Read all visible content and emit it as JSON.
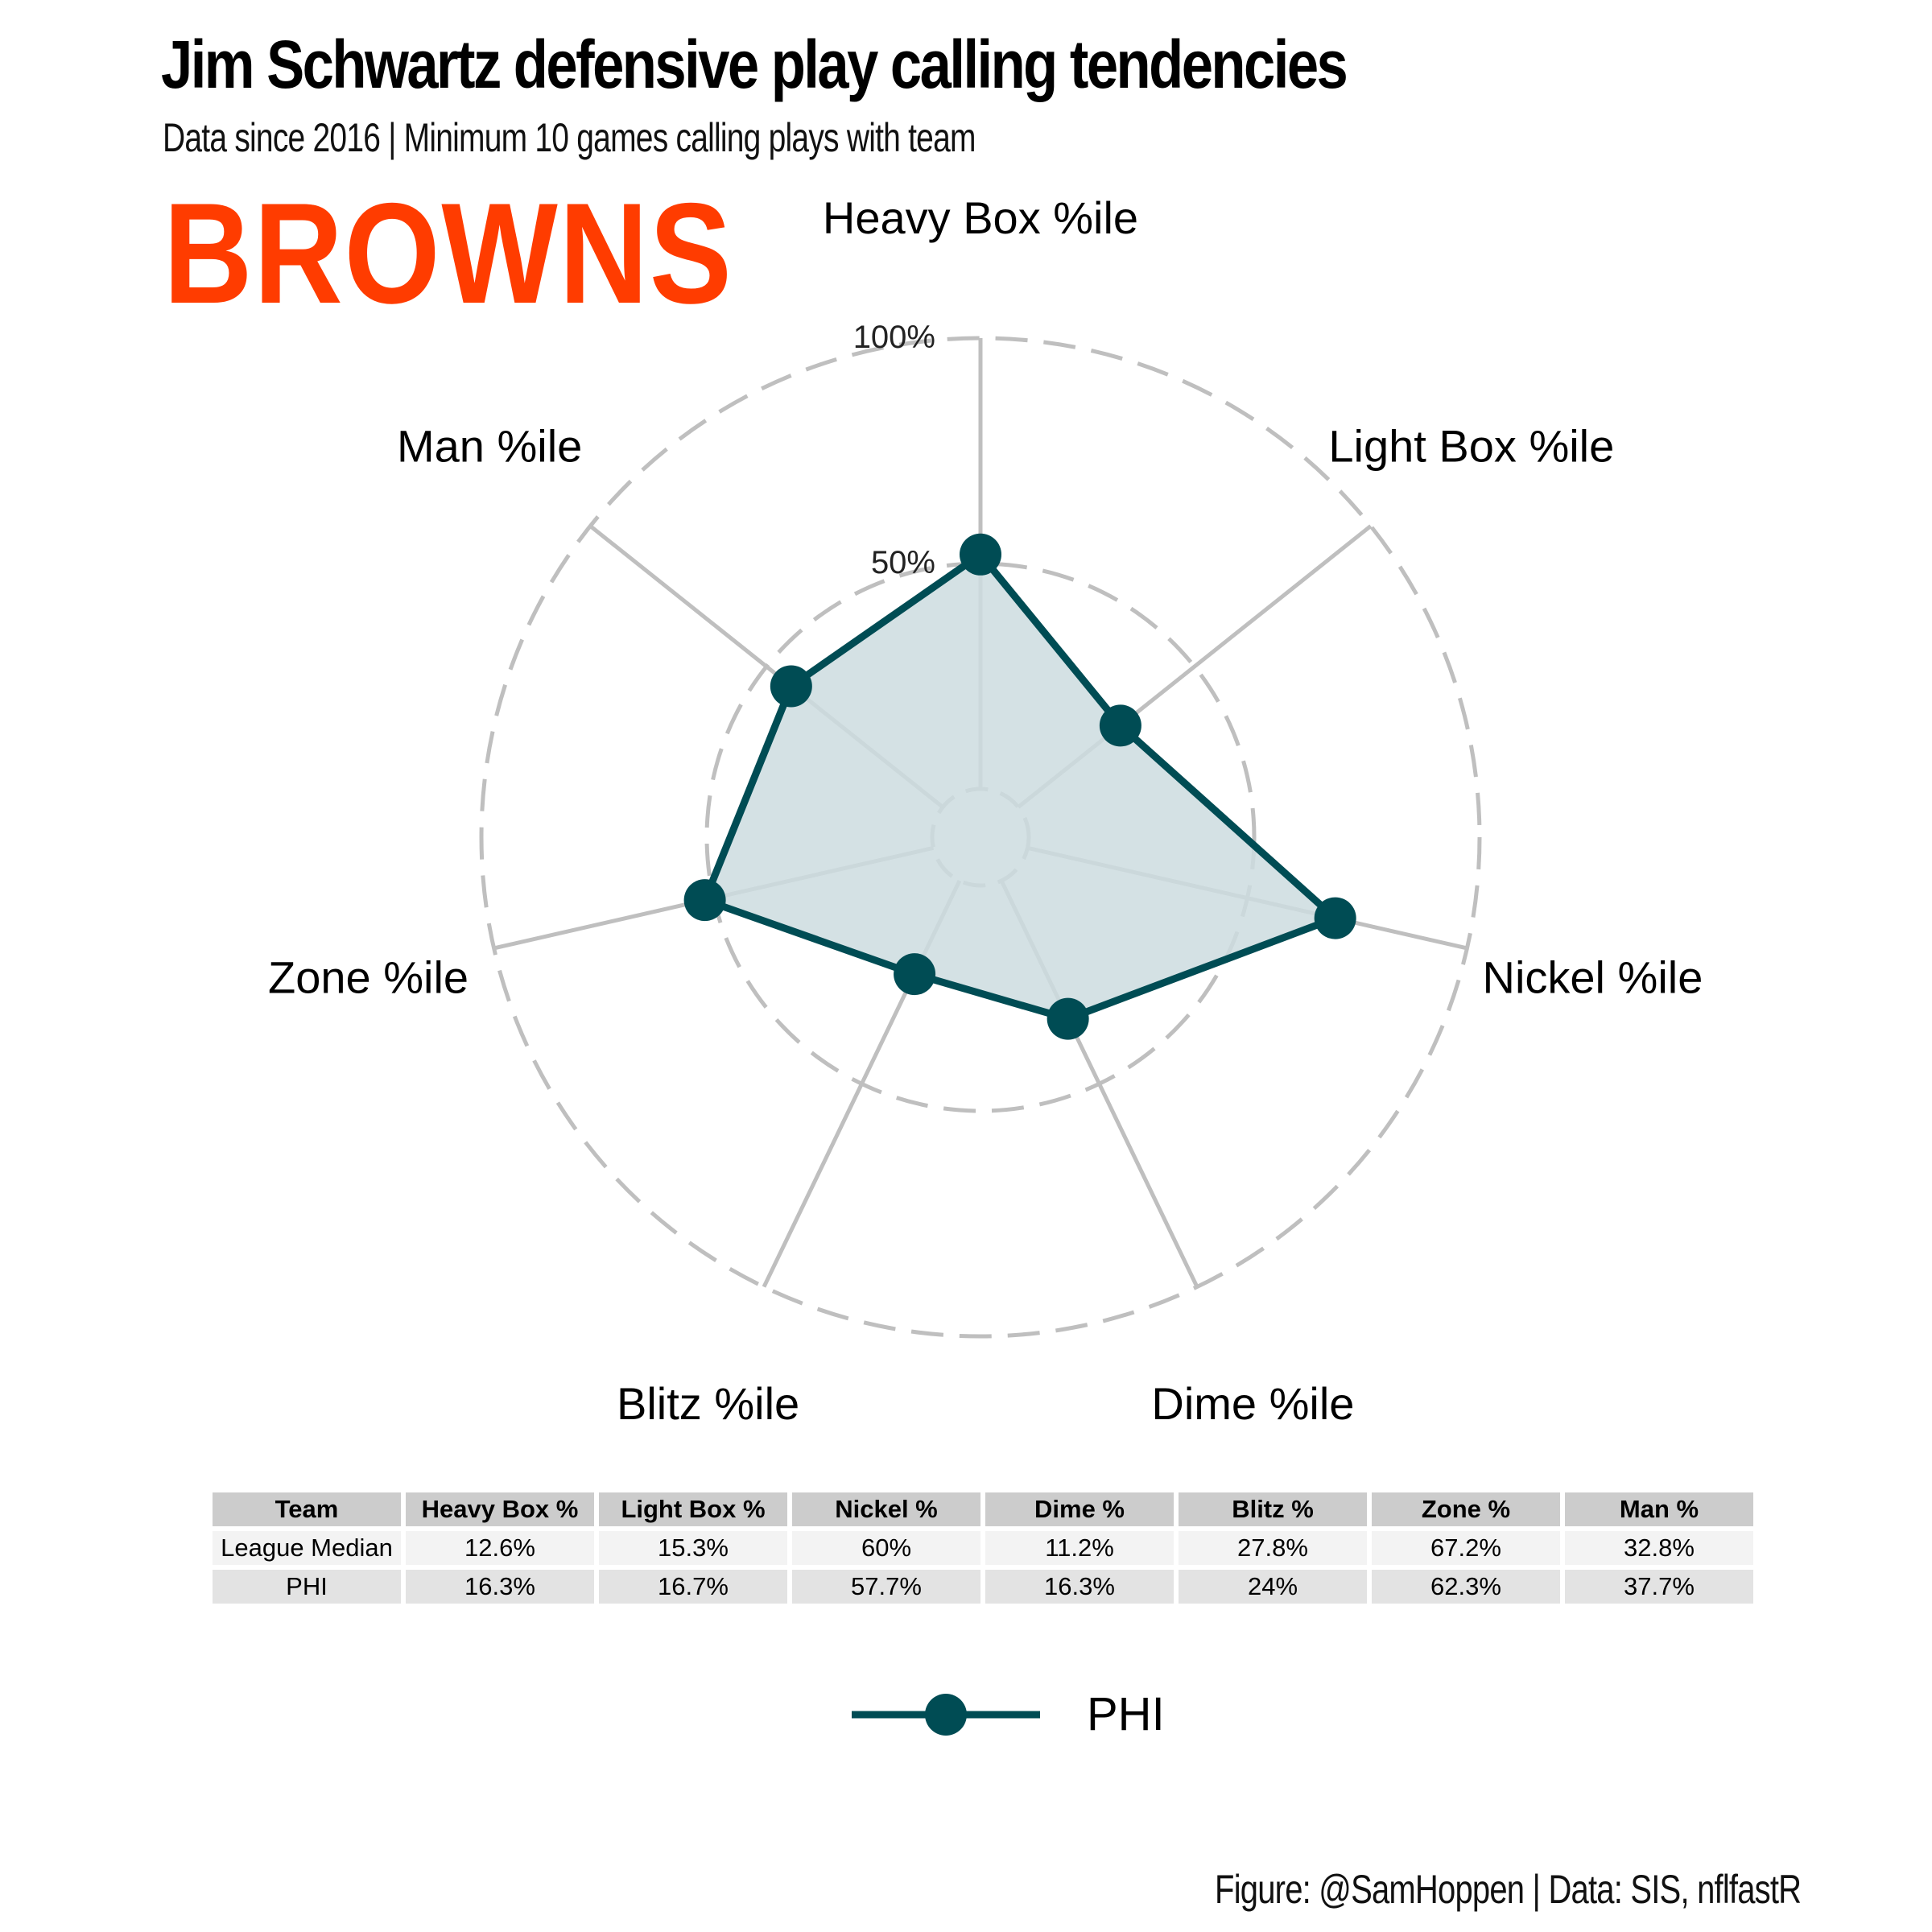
{
  "title": "Jim Schwartz defensive play calling tendencies",
  "subtitle": "Data since 2016 | Minimum 10 games calling plays with team",
  "logo_text": "BROWNS",
  "caption": "Figure: @SamHoppen | Data: SIS, nflfastR",
  "colors": {
    "series": "#004c54",
    "fill": "#cddcdf",
    "grid": "#bfbfbf",
    "logo": "#ff3c00"
  },
  "chart_data": {
    "type": "radar",
    "axes": [
      "Heavy Box %ile",
      "Light Box %ile",
      "Nickel %ile",
      "Dime %ile",
      "Blitz %ile",
      "Zone %ile",
      "Man %ile"
    ],
    "rings": [
      50,
      100
    ],
    "ring_labels": [
      "50%",
      "100%"
    ],
    "rmax": 100,
    "grid_style": "dashed",
    "series": [
      {
        "name": "PHI",
        "values": [
          52,
          29,
          70,
          34,
          23,
          52,
          43
        ]
      }
    ],
    "legend": {
      "position": "bottom",
      "entries": [
        "PHI"
      ]
    }
  },
  "table": {
    "headers": [
      "Team",
      "Heavy Box %",
      "Light Box %",
      "Nickel %",
      "Dime %",
      "Blitz %",
      "Zone %",
      "Man %"
    ],
    "rows": [
      [
        "League Median",
        "12.6%",
        "15.3%",
        "60%",
        "11.2%",
        "27.8%",
        "67.2%",
        "32.8%"
      ],
      [
        "PHI",
        "16.3%",
        "16.7%",
        "57.7%",
        "16.3%",
        "24%",
        "62.3%",
        "37.7%"
      ]
    ]
  }
}
